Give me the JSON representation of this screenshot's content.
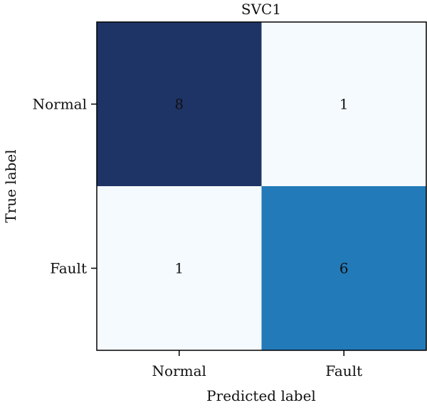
{
  "chart_data": {
    "type": "heatmap",
    "title": "SVC1",
    "xlabel": "Predicted label",
    "ylabel": "True label",
    "x_categories": [
      "Normal",
      "Fault"
    ],
    "y_categories": [
      "Normal",
      "Fault"
    ],
    "values": [
      [
        8,
        1
      ],
      [
        1,
        6
      ]
    ],
    "value_range": [
      1,
      8
    ],
    "colormap": "Blues",
    "cell_colors": [
      [
        "#1f3466",
        "#f5fafe"
      ],
      [
        "#f5fafe",
        "#237ab9"
      ]
    ],
    "grid": false
  }
}
